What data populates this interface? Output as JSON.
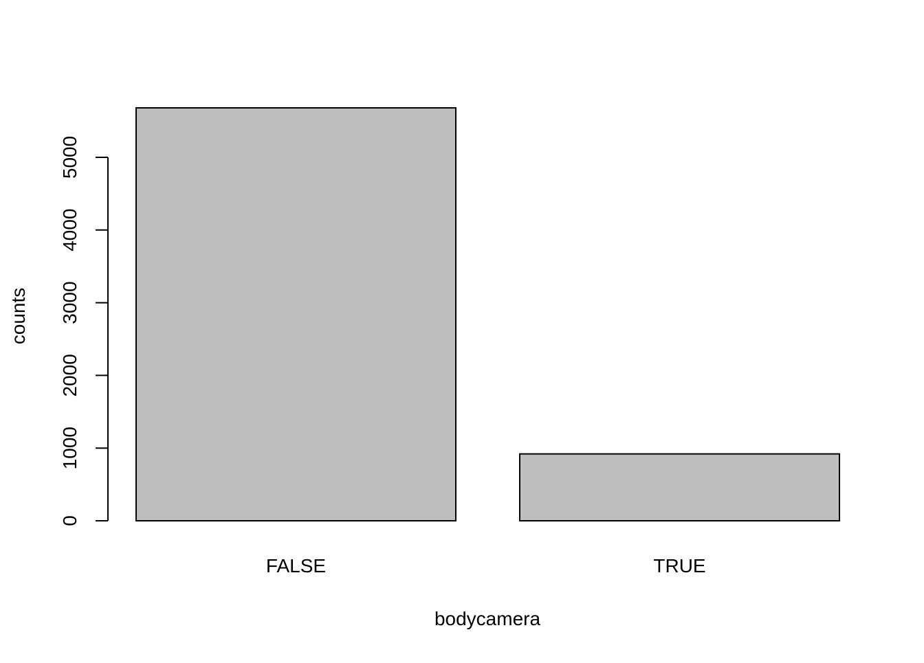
{
  "chart_data": {
    "type": "bar",
    "categories": [
      "FALSE",
      "TRUE"
    ],
    "values": [
      5680,
      920
    ],
    "title": "",
    "xlabel": "bodycamera",
    "ylabel": "counts",
    "ylim": [
      0,
      5680
    ],
    "yticks": [
      0,
      1000,
      2000,
      3000,
      4000,
      5000
    ],
    "ytick_labels": [
      "0",
      "1000",
      "2000",
      "3000",
      "4000",
      "5000"
    ],
    "grid": false,
    "legend": "none",
    "colors": {
      "bar_fill": "#bebebe",
      "bar_stroke": "#000000",
      "axis": "#000000",
      "background": "#ffffff"
    }
  }
}
